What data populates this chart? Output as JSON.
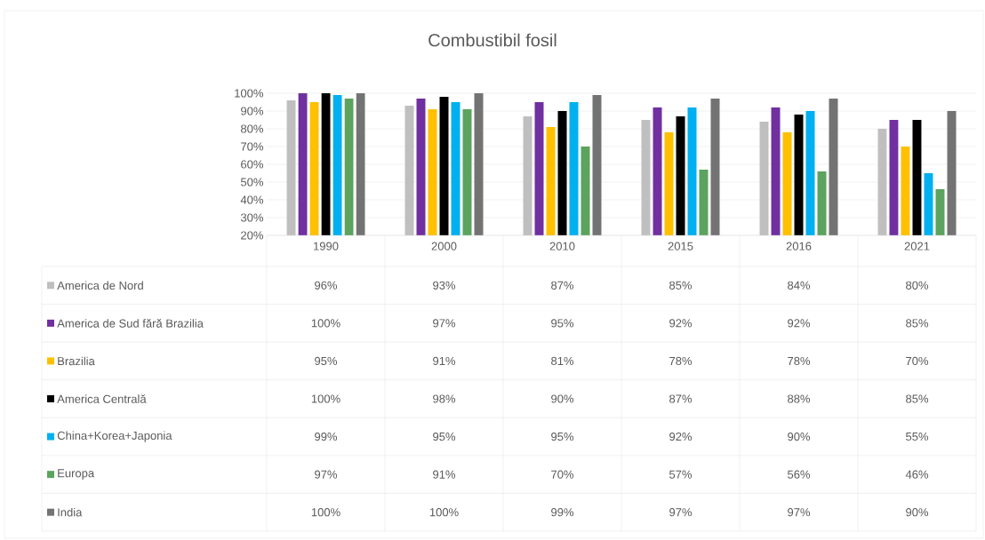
{
  "chart_data": {
    "type": "bar",
    "title": "Combustibil fosil",
    "categories": [
      "1990",
      "2000",
      "2010",
      "2015",
      "2016",
      "2021"
    ],
    "series": [
      {
        "name": "America de Nord",
        "color": "#bfbfbf",
        "values": [
          96,
          93,
          87,
          85,
          84,
          80
        ],
        "value_labels": [
          "96%",
          "93%",
          "87%",
          "85%",
          "84%",
          "80%"
        ]
      },
      {
        "name": "America de Sud fără Brazilia",
        "color": "#7030a0",
        "values": [
          100,
          97,
          95,
          92,
          92,
          85
        ],
        "value_labels": [
          "100%",
          "97%",
          "95%",
          "92%",
          "92%",
          "85%"
        ]
      },
      {
        "name": "Brazilia",
        "color": "#ffc000",
        "values": [
          95,
          91,
          81,
          78,
          78,
          70
        ],
        "value_labels": [
          "95%",
          "91%",
          "81%",
          "78%",
          "78%",
          "70%"
        ]
      },
      {
        "name": "America Centrală",
        "color": "#000000",
        "values": [
          100,
          98,
          90,
          87,
          88,
          85
        ],
        "value_labels": [
          "100%",
          "98%",
          "90%",
          "87%",
          "88%",
          "85%"
        ]
      },
      {
        "name": "China+Korea+Japonia",
        "color": "#00b0f0",
        "values": [
          99,
          95,
          95,
          92,
          90,
          55
        ],
        "value_labels": [
          "99%",
          "95%",
          "95%",
          "92%",
          "90%",
          "55%"
        ]
      },
      {
        "name": "Europa",
        "color": "#5ba35e",
        "values": [
          97,
          91,
          70,
          57,
          56,
          46
        ],
        "value_labels": [
          "97%",
          "91%",
          "70%",
          "57%",
          "56%",
          "46%"
        ]
      },
      {
        "name": "India",
        "color": "#737373",
        "values": [
          100,
          100,
          99,
          97,
          97,
          90
        ],
        "value_labels": [
          "100%",
          "100%",
          "99%",
          "97%",
          "97%",
          "90%"
        ]
      }
    ],
    "ylim": [
      20,
      100
    ],
    "yticks": [
      {
        "value": 20,
        "label": "20%"
      },
      {
        "value": 30,
        "label": "30%"
      },
      {
        "value": 40,
        "label": "40%"
      },
      {
        "value": 50,
        "label": "50%"
      },
      {
        "value": 60,
        "label": "60%"
      },
      {
        "value": 70,
        "label": "70%"
      },
      {
        "value": 80,
        "label": "80%"
      },
      {
        "value": 90,
        "label": "90%"
      },
      {
        "value": 100,
        "label": "100%"
      }
    ],
    "grid": "y",
    "legend": "bottom"
  }
}
